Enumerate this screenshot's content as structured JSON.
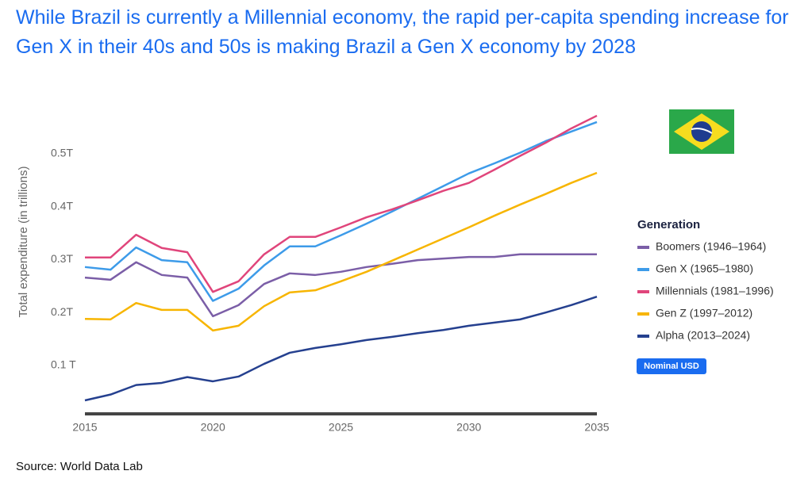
{
  "chart_data": {
    "type": "line",
    "title": "While Brazil is currently a Millennial economy, the rapid per-capita spending increase for Gen X in their 40s and 50s is making Brazil a Gen X economy by 2028",
    "y_label": "Total expenditure (in trillions)",
    "legend_title": "Generation",
    "badge": "Nominal USD",
    "source": "Source: World Data Lab",
    "x": [
      2015,
      2016,
      2017,
      2018,
      2019,
      2020,
      2021,
      2022,
      2023,
      2024,
      2025,
      2026,
      2027,
      2028,
      2029,
      2030,
      2031,
      2032,
      2033,
      2034,
      2035
    ],
    "xlim": [
      2015,
      2035
    ],
    "xticks": [
      2015,
      2020,
      2025,
      2030,
      2035
    ],
    "ylim": [
      0.01,
      0.58
    ],
    "yticks": [
      {
        "value": 0.1,
        "label": "0.1 T"
      },
      {
        "value": 0.2,
        "label": "0.2T"
      },
      {
        "value": 0.3,
        "label": "0.3T"
      },
      {
        "value": 0.4,
        "label": "0.4T"
      },
      {
        "value": 0.5,
        "label": "0.5T"
      }
    ],
    "grid": false,
    "legend": "right",
    "series": [
      {
        "name": "Boomers (1946–1964)",
        "color": "#7b5ea7",
        "values": [
          0.266,
          0.262,
          0.295,
          0.271,
          0.266,
          0.193,
          0.214,
          0.254,
          0.274,
          0.271,
          0.277,
          0.286,
          0.292,
          0.299,
          0.302,
          0.305,
          0.305,
          0.31,
          0.31,
          0.31,
          0.31
        ]
      },
      {
        "name": "Gen X (1965–1980)",
        "color": "#3d9be9",
        "values": [
          0.286,
          0.281,
          0.323,
          0.299,
          0.295,
          0.222,
          0.245,
          0.289,
          0.325,
          0.325,
          0.346,
          0.368,
          0.391,
          0.415,
          0.439,
          0.463,
          0.482,
          0.502,
          0.524,
          0.542,
          0.56
        ]
      },
      {
        "name": "Millennials (1981–1996)",
        "color": "#e0457b",
        "values": [
          0.304,
          0.304,
          0.347,
          0.322,
          0.314,
          0.239,
          0.259,
          0.31,
          0.343,
          0.343,
          0.361,
          0.38,
          0.395,
          0.412,
          0.43,
          0.445,
          0.47,
          0.496,
          0.521,
          0.548,
          0.572
        ]
      },
      {
        "name": "Gen Z (1997–2012)",
        "color": "#f7b500",
        "values": [
          0.188,
          0.187,
          0.218,
          0.205,
          0.205,
          0.166,
          0.175,
          0.212,
          0.238,
          0.242,
          0.259,
          0.277,
          0.298,
          0.319,
          0.34,
          0.361,
          0.383,
          0.404,
          0.424,
          0.445,
          0.464
        ]
      },
      {
        "name": "Alpha (2013–2024)",
        "color": "#25408f",
        "values": [
          0.034,
          0.045,
          0.063,
          0.067,
          0.078,
          0.07,
          0.079,
          0.103,
          0.124,
          0.133,
          0.14,
          0.148,
          0.154,
          0.161,
          0.167,
          0.175,
          0.181,
          0.187,
          0.2,
          0.214,
          0.23
        ]
      }
    ]
  }
}
